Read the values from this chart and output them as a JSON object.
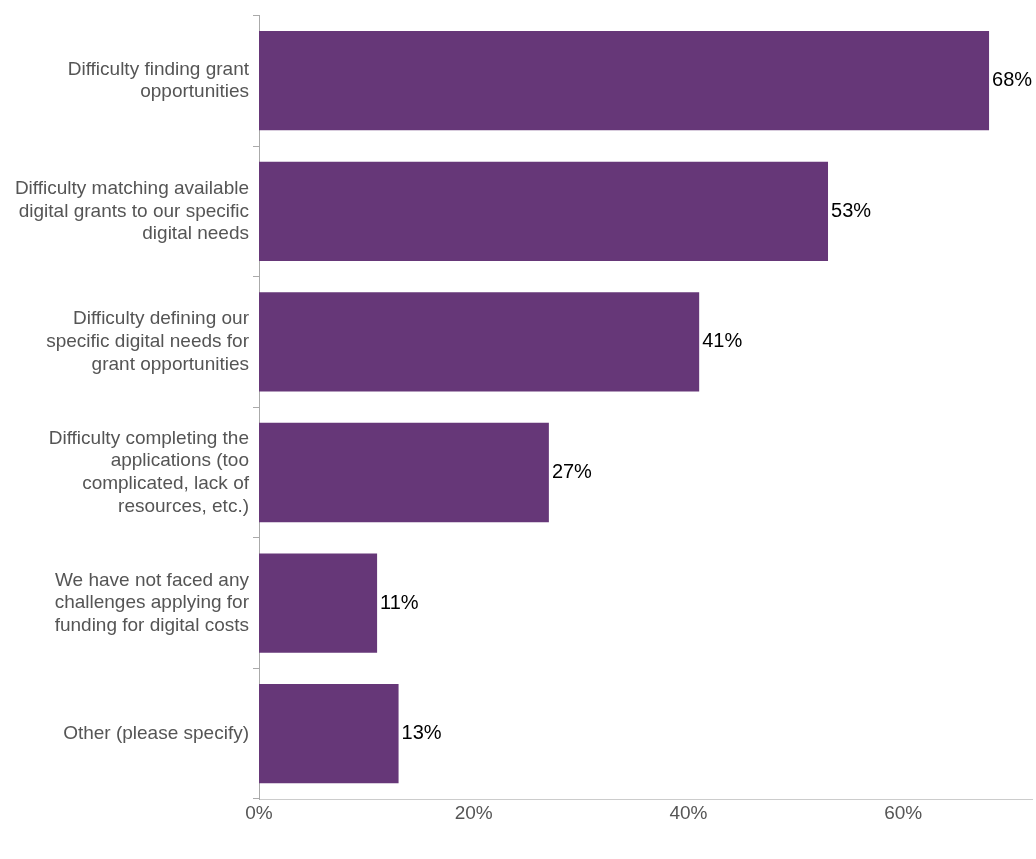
{
  "chart_data": {
    "type": "bar",
    "orientation": "horizontal",
    "categories": [
      "Difficulty finding grant opportunities",
      "Difficulty matching available digital grants to our specific digital needs",
      "Difficulty defining our specific digital needs for grant opportunities",
      "Difficulty completing the applications (too complicated, lack of resources, etc.)",
      "We have not faced any challenges applying for funding for digital costs",
      "Other (please specify)"
    ],
    "values": [
      68,
      53,
      41,
      27,
      11,
      13
    ],
    "value_labels": [
      "68%",
      "53%",
      "41%",
      "27%",
      "11%",
      "13%"
    ],
    "color": "#663778",
    "xlim": [
      0,
      72
    ],
    "xticks": [
      {
        "value": 0,
        "label": "0%"
      },
      {
        "value": 20,
        "label": "20%"
      },
      {
        "value": 40,
        "label": "40%"
      },
      {
        "value": 60,
        "label": "60%"
      }
    ],
    "grid": false,
    "legend": false
  }
}
